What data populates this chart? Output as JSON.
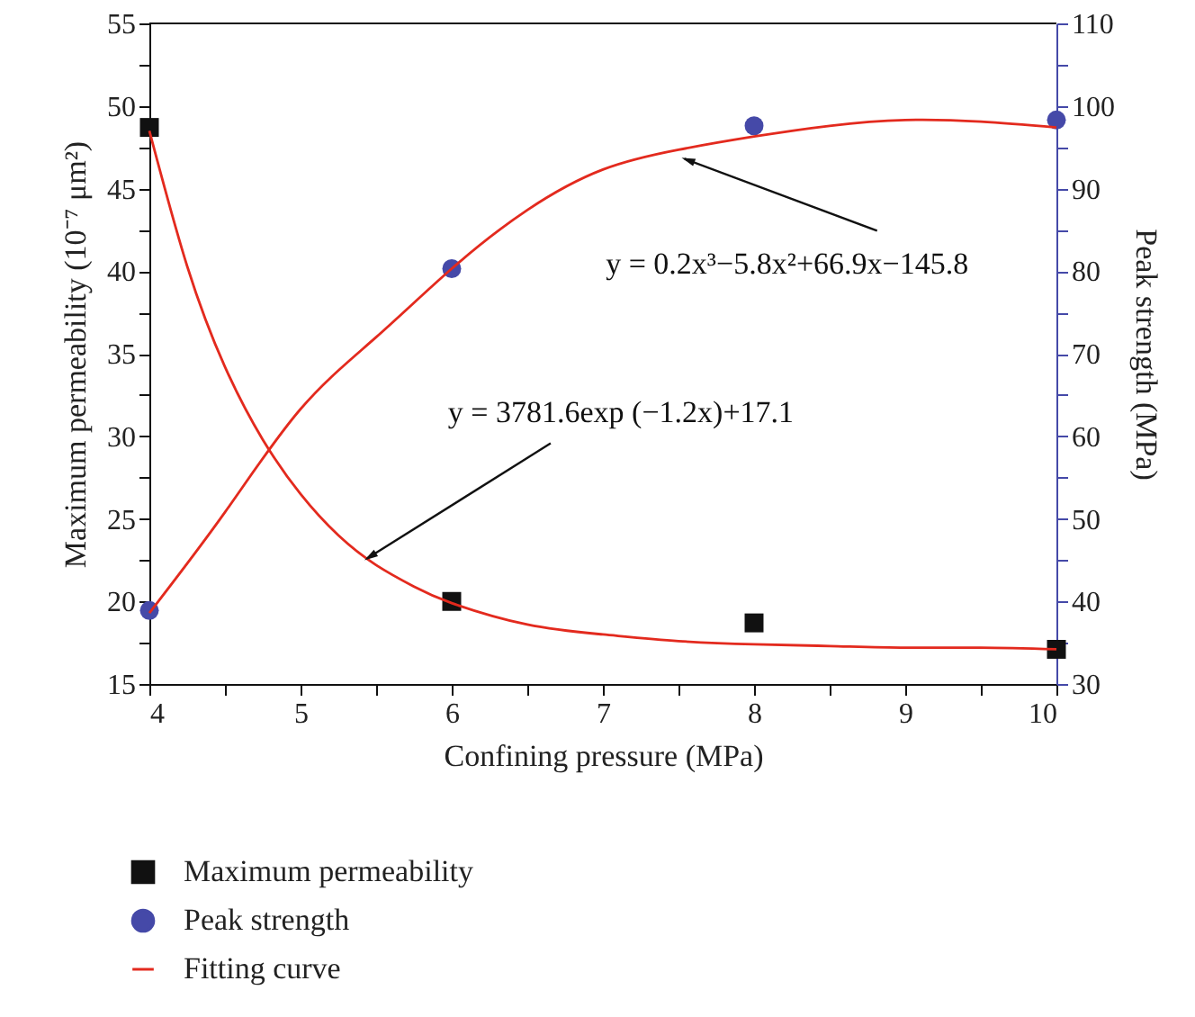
{
  "chart_data": {
    "type": "scatter",
    "xlabel": "Confining pressure (MPa)",
    "ylabel": "Maximum permeability (10⁻⁷ μm²)",
    "y2label": "Peak strength (MPa)",
    "xlim": [
      4,
      10
    ],
    "xticks": [
      4,
      {
        "value": 4.5,
        "label": null
      },
      5,
      {
        "value": 5.5,
        "label": null
      },
      6,
      {
        "value": 6.5,
        "label": null
      },
      7,
      {
        "value": 7.5,
        "label": null
      },
      8,
      {
        "value": 8.5,
        "label": null
      },
      9,
      {
        "value": 9.5,
        "label": null
      },
      10
    ],
    "ylim": [
      15,
      55
    ],
    "yticks": [
      15,
      {
        "value": 17.5,
        "label": null
      },
      20,
      {
        "value": 22.5,
        "label": null
      },
      25,
      {
        "value": 27.5,
        "label": null
      },
      30,
      {
        "value": 32.5,
        "label": null
      },
      35,
      {
        "value": 37.5,
        "label": null
      },
      40,
      {
        "value": 42.5,
        "label": null
      },
      45,
      {
        "value": 47.5,
        "label": null
      },
      50,
      {
        "value": 52.5,
        "label": null
      },
      55
    ],
    "y2lim": [
      30,
      110
    ],
    "y2ticks": [
      30,
      {
        "value": 35,
        "label": null
      },
      40,
      {
        "value": 45,
        "label": null
      },
      50,
      {
        "value": 55,
        "label": null
      },
      60,
      {
        "value": 65,
        "label": null
      },
      70,
      {
        "value": 75,
        "label": null
      },
      80,
      {
        "value": 85,
        "label": null
      },
      90,
      {
        "value": 95,
        "label": null
      },
      100,
      {
        "value": 105,
        "label": null
      },
      110
    ],
    "x": [
      4,
      6,
      8,
      10
    ],
    "series": [
      {
        "name": "Maximum permeability",
        "marker": "square",
        "color": "#111111",
        "values": [
          48.7,
          20.0,
          18.7,
          17.1
        ]
      },
      {
        "name": "Peak strength",
        "marker": "circle",
        "color": "#4549a8",
        "axis": "y2",
        "values": [
          38.9,
          80.3,
          97.6,
          98.3
        ]
      },
      {
        "name": "Fitting curve",
        "type": "line",
        "color": "#e32a1e",
        "x": [
          4,
          4.25,
          4.5,
          4.75,
          5,
          5.25,
          5.5,
          5.75,
          6,
          6.5,
          7,
          7.5,
          8,
          8.5,
          9,
          9.5,
          10
        ],
        "values": [
          48.5,
          40.3,
          34.2,
          29.8,
          26.5,
          24.0,
          22.2,
          20.9,
          19.9,
          18.6,
          18.0,
          17.6,
          17.4,
          17.3,
          17.2,
          17.2,
          17.1
        ]
      },
      {
        "type": "line",
        "color": "#e32a1e",
        "axis": "y2",
        "x": [
          4,
          4.5,
          5,
          5.5,
          6,
          6.5,
          7,
          7.5,
          8,
          8.5,
          9,
          9.5,
          10
        ],
        "values": [
          38.6,
          50.8,
          63.3,
          72.0,
          80.3,
          87.4,
          92.3,
          94.7,
          96.3,
          97.6,
          98.3,
          98.1,
          97.4
        ]
      }
    ],
    "annotations": [
      {
        "text": "y = 0.2x³−5.8x²+66.9x−145.8",
        "x": 7.54,
        "y": 46.8
      },
      {
        "text": "y = 3781.6exp (−1.2x)+17.1",
        "x": 5.44,
        "y": 22.6
      }
    ],
    "legend": "bottom left"
  }
}
